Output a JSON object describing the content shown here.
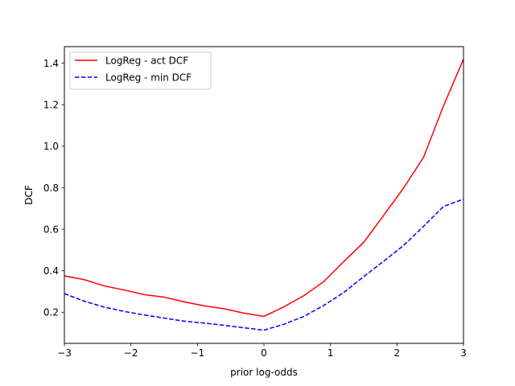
{
  "chart_data": {
    "type": "line",
    "xlabel": "prior log-odds",
    "ylabel": "DCF",
    "xlim": [
      -3,
      3
    ],
    "ylim": [
      0.05,
      1.48
    ],
    "grid": false,
    "legend_placement": "top-left",
    "x_ticks": [
      -3,
      -2,
      -1,
      0,
      1,
      2,
      3
    ],
    "x_tick_labels": [
      "−3",
      "−2",
      "−1",
      "0",
      "1",
      "2",
      "3"
    ],
    "y_ticks": [
      0.2,
      0.4,
      0.6,
      0.8,
      1.0,
      1.2,
      1.4
    ],
    "y_tick_labels": [
      "0.2",
      "0.4",
      "0.6",
      "0.8",
      "1.0",
      "1.2",
      "1.4"
    ],
    "x": [
      -3.0,
      -2.7,
      -2.4,
      -2.1,
      -1.8,
      -1.5,
      -1.2,
      -0.9,
      -0.6,
      -0.3,
      0.0,
      0.3,
      0.6,
      0.9,
      1.2,
      1.5,
      1.8,
      2.1,
      2.4,
      2.7,
      3.0
    ],
    "series": [
      {
        "name": "LogReg - act DCF",
        "color": "#ff0000",
        "style": "solid",
        "values": [
          0.375,
          0.357,
          0.327,
          0.307,
          0.285,
          0.273,
          0.25,
          0.231,
          0.217,
          0.196,
          0.18,
          0.226,
          0.28,
          0.348,
          0.444,
          0.537,
          0.667,
          0.799,
          0.947,
          1.195,
          1.42
        ]
      },
      {
        "name": "LogReg - min DCF",
        "color": "#0000ff",
        "style": "dashed",
        "values": [
          0.29,
          0.253,
          0.225,
          0.204,
          0.187,
          0.172,
          0.157,
          0.148,
          0.137,
          0.125,
          0.114,
          0.142,
          0.18,
          0.233,
          0.295,
          0.372,
          0.446,
          0.522,
          0.614,
          0.71,
          0.745
        ]
      }
    ]
  }
}
